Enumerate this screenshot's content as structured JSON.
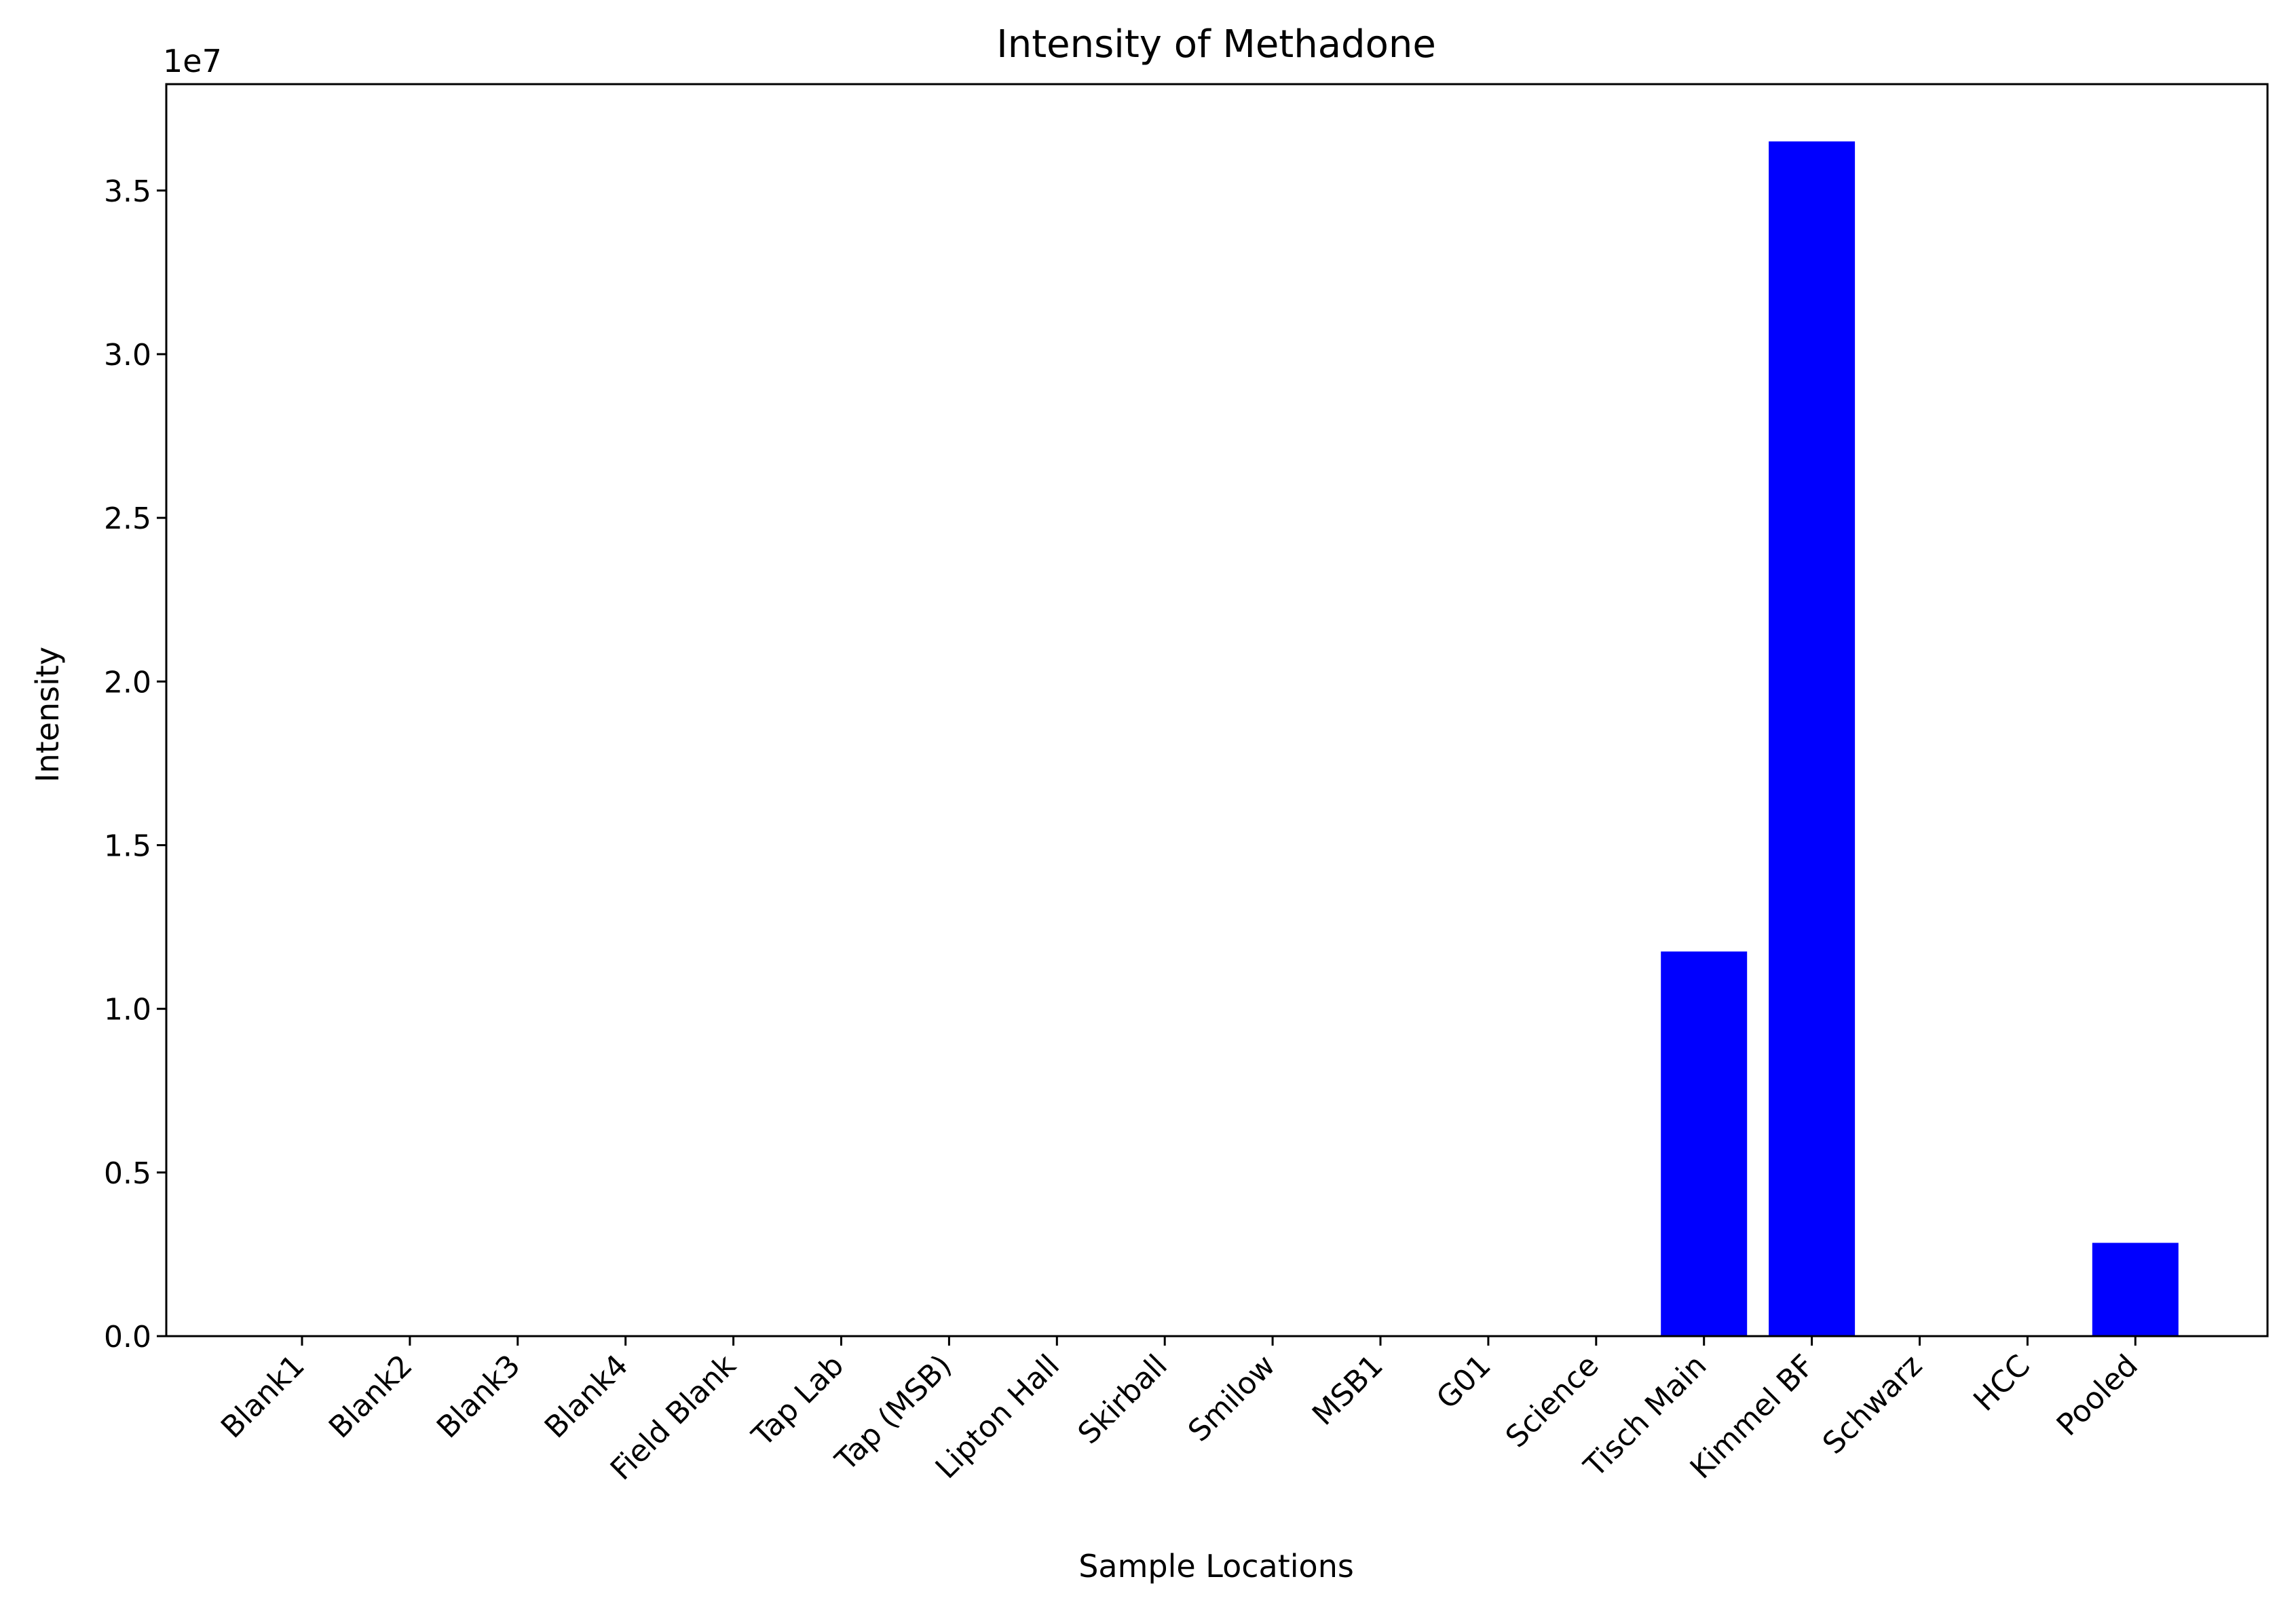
{
  "chart_data": {
    "type": "bar",
    "title": "Intensity of Methadone",
    "xlabel": "Sample Locations",
    "ylabel": "Intensity",
    "y_offset_label": "1e7",
    "categories": [
      "Blank1",
      "Blank2",
      "Blank3",
      "Blank4",
      "Field Blank",
      "Tap Lab",
      "Tap (MSB)",
      "Lipton Hall",
      "Skirball",
      "Smilow",
      "MSB1",
      "G01",
      "Science",
      "Tisch Main",
      "Kimmel BF",
      "Schwarz",
      "HCC",
      "Pooled"
    ],
    "values": [
      0,
      0,
      0,
      0,
      0,
      0,
      0,
      0,
      0,
      0,
      0,
      0,
      0,
      11750000,
      36500000,
      0,
      0,
      2850000
    ],
    "ylim": [
      0,
      38250000
    ],
    "yticks": [
      0,
      5000000,
      10000000,
      15000000,
      20000000,
      25000000,
      30000000,
      35000000
    ],
    "ytick_labels": [
      "0.0",
      "0.5",
      "1.0",
      "1.5",
      "2.0",
      "2.5",
      "3.0",
      "3.5"
    ],
    "bar_color": "#0000ff",
    "grid": false,
    "legend": "none"
  }
}
